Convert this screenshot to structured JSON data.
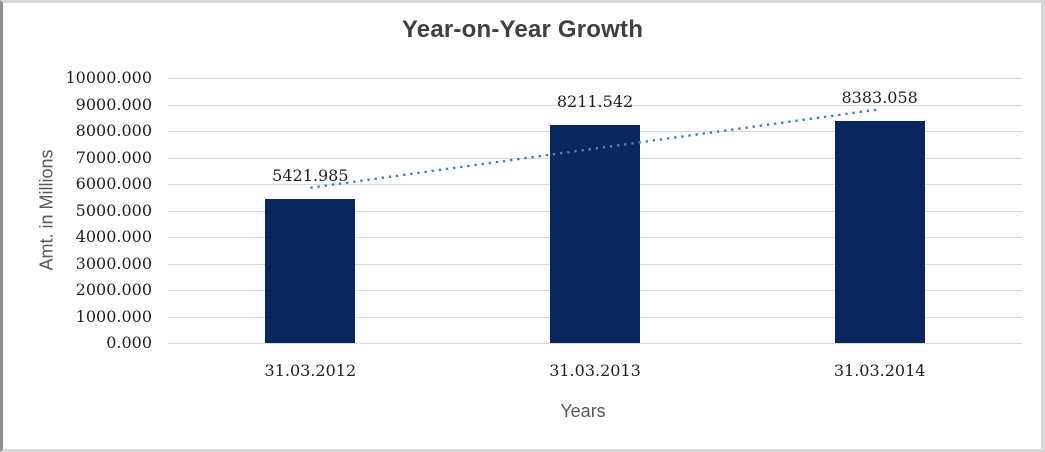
{
  "chart_data": {
    "type": "bar",
    "title": "Year-on-Year Growth",
    "xlabel": "Years",
    "ylabel": "Amt. in Millions",
    "categories": [
      "31.03.2012",
      "31.03.2013",
      "31.03.2014"
    ],
    "values": [
      5421.985,
      8211.542,
      8383.058
    ],
    "data_labels": [
      "5421.985",
      "8211.542",
      "8383.058"
    ],
    "ylim": [
      0,
      10000
    ],
    "y_ticks": [
      {
        "label": "0.000",
        "value": 0
      },
      {
        "label": "1000.000",
        "value": 1000
      },
      {
        "label": "2000.000",
        "value": 2000
      },
      {
        "label": "3000.000",
        "value": 3000
      },
      {
        "label": "4000.000",
        "value": 4000
      },
      {
        "label": "5000.000",
        "value": 5000
      },
      {
        "label": "6000.000",
        "value": 6000
      },
      {
        "label": "7000.000",
        "value": 7000
      },
      {
        "label": "8000.000",
        "value": 8000
      },
      {
        "label": "9000.000",
        "value": 9000
      },
      {
        "label": "10000.000",
        "value": 10000
      }
    ],
    "grid": true,
    "legend": "none",
    "trendline": {
      "type": "linear",
      "style": "dotted",
      "spans": "first-to-last-category",
      "color": "#4a7ebb"
    },
    "colors": {
      "bar": "#0a265e",
      "gridline": "#d9d9d9",
      "title_text": "#404040",
      "tick_text": "#1f1f1f",
      "data_label_text": "#1f1f1f",
      "axis_title_text": "#595959"
    }
  }
}
